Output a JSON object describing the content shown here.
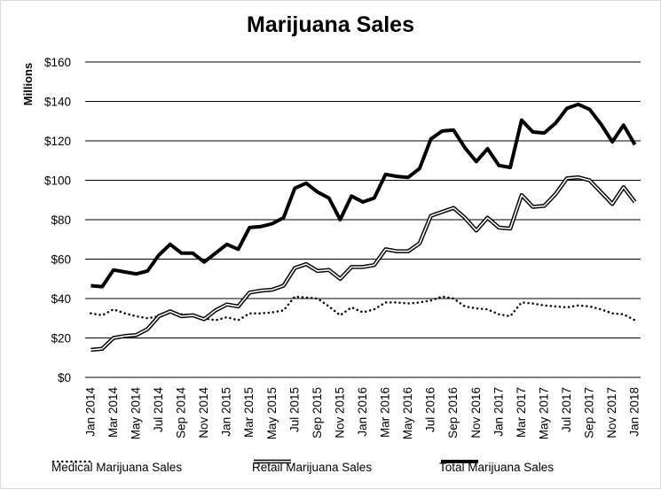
{
  "chart_data": {
    "type": "line",
    "title": "Marijuana Sales",
    "ylabel": "Millions",
    "xlabel": "",
    "ylim": [
      0,
      160
    ],
    "yticks": [
      0,
      20,
      40,
      60,
      80,
      100,
      120,
      140,
      160
    ],
    "ytick_labels": [
      "$0",
      "$20",
      "$40",
      "$60",
      "$80",
      "$100",
      "$120",
      "$140",
      "$160"
    ],
    "grid": "horizontal",
    "legend_position": "bottom",
    "x_tick_labels": [
      "Jan 2014",
      "Mar 2014",
      "May 2014",
      "Jul 2014",
      "Sep 2014",
      "Nov 2014",
      "Jan 2015",
      "Mar 2015",
      "May 2015",
      "Jul 2015",
      "Sep 2015",
      "Nov 2015",
      "Jan 2016",
      "Mar 2016",
      "May 2016",
      "Jul 2016",
      "Sep 2016",
      "Nov 2016",
      "Jan 2017",
      "Mar 2017",
      "May 2017",
      "Jul 2017",
      "Sep 2017",
      "Nov 2017",
      "Jan 2018"
    ],
    "x": [
      "Jan 2014",
      "Feb 2014",
      "Mar 2014",
      "Apr 2014",
      "May 2014",
      "Jun 2014",
      "Jul 2014",
      "Aug 2014",
      "Sep 2014",
      "Oct 2014",
      "Nov 2014",
      "Dec 2014",
      "Jan 2015",
      "Feb 2015",
      "Mar 2015",
      "Apr 2015",
      "May 2015",
      "Jun 2015",
      "Jul 2015",
      "Aug 2015",
      "Sep 2015",
      "Oct 2015",
      "Nov 2015",
      "Dec 2015",
      "Jan 2016",
      "Feb 2016",
      "Mar 2016",
      "Apr 2016",
      "May 2016",
      "Jun 2016",
      "Jul 2016",
      "Aug 2016",
      "Sep 2016",
      "Oct 2016",
      "Nov 2016",
      "Dec 2016",
      "Jan 2017",
      "Feb 2017",
      "Mar 2017",
      "Apr 2017",
      "May 2017",
      "Jun 2017",
      "Jul 2017",
      "Aug 2017",
      "Sep 2017",
      "Oct 2017",
      "Nov 2017",
      "Dec 2017",
      "Jan 2018"
    ],
    "series": [
      {
        "name": "Medical Marijuana Sales",
        "style": "dotted",
        "color": "#000000",
        "values": [
          32.5,
          31.5,
          34.5,
          32.5,
          31,
          30,
          31,
          33.5,
          32,
          31.5,
          30,
          29,
          30.5,
          29,
          32.5,
          32.5,
          33,
          34,
          41,
          40.5,
          40,
          36,
          31.5,
          35.5,
          33,
          34.5,
          38,
          38,
          37.5,
          38,
          39,
          41,
          40,
          36,
          35,
          34.5,
          32,
          31,
          38,
          37.5,
          36.5,
          36,
          35.5,
          36.5,
          36,
          34.5,
          32.5,
          32,
          29
        ]
      },
      {
        "name": "Retail Marijuana Sales",
        "style": "double",
        "color": "#000000",
        "values": [
          14,
          14.5,
          20,
          21,
          21.5,
          24.5,
          31,
          33.5,
          31,
          31.5,
          29.5,
          34,
          37,
          36,
          43,
          44,
          44.5,
          46.5,
          55.5,
          57.5,
          54,
          54.5,
          50,
          56,
          56,
          57,
          65,
          64,
          64,
          68,
          82,
          84,
          86,
          81,
          74.5,
          81,
          76,
          75.5,
          92.5,
          86.5,
          87,
          93,
          101,
          101.5,
          100,
          94,
          88,
          96.5,
          89
        ]
      },
      {
        "name": "Total Marijuana Sales",
        "style": "thick",
        "color": "#000000",
        "values": [
          46.5,
          46,
          54.5,
          53.5,
          52.5,
          54,
          62,
          67.5,
          63,
          63,
          58.5,
          63,
          67.5,
          65,
          76,
          76.5,
          78,
          81,
          96,
          98.5,
          94,
          91,
          80,
          92,
          89,
          91,
          103,
          102,
          101.5,
          106,
          121,
          125,
          125.5,
          116.5,
          109.5,
          116,
          107.5,
          106.5,
          130.5,
          124.5,
          124,
          129,
          136.5,
          138.5,
          136,
          128.5,
          119.5,
          128,
          118
        ]
      }
    ]
  }
}
